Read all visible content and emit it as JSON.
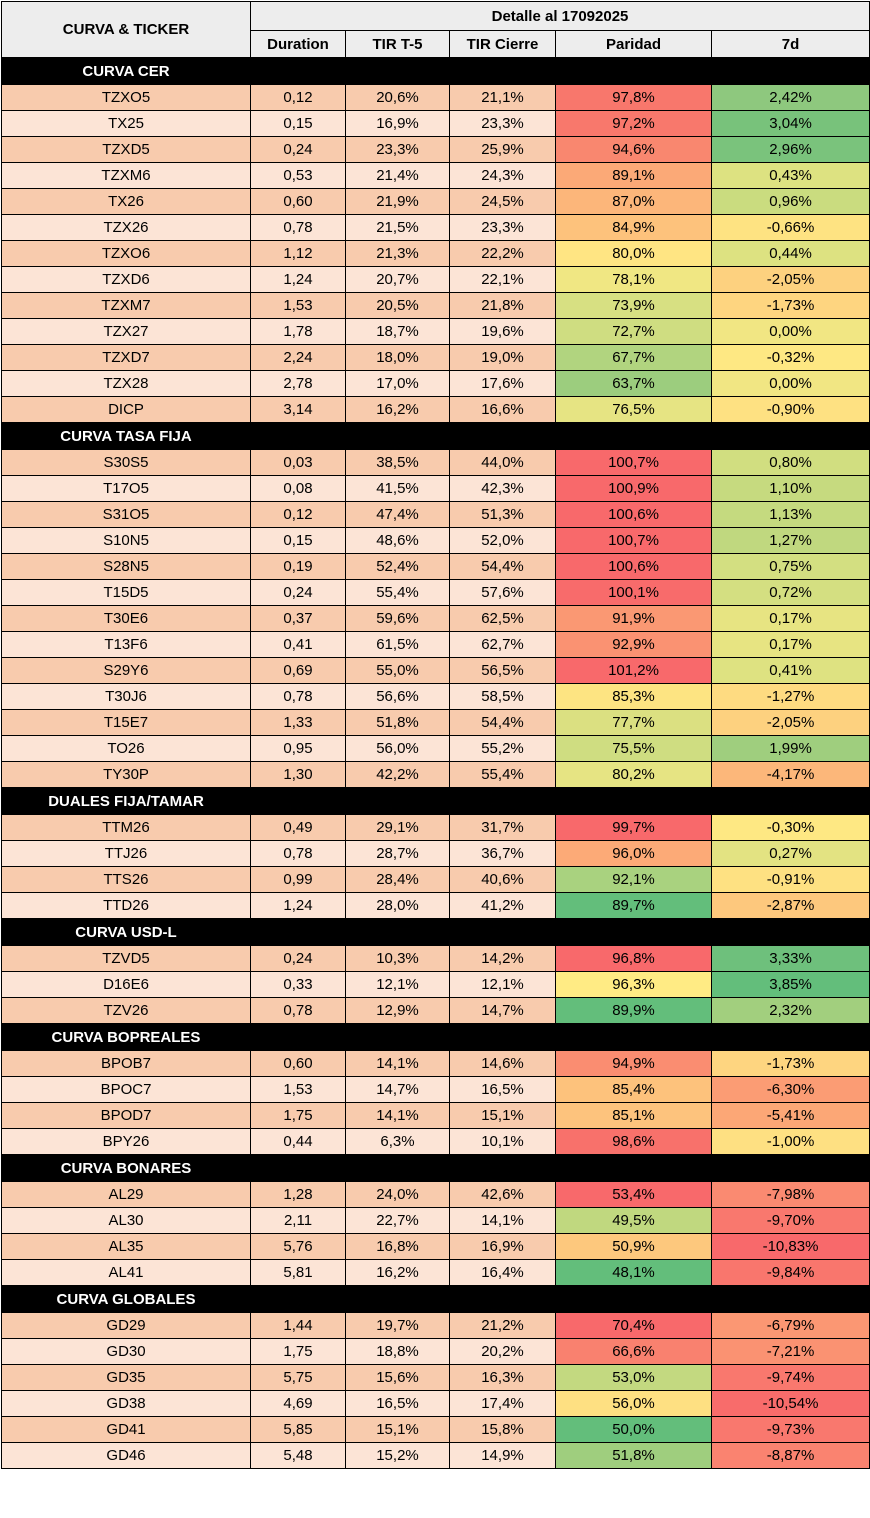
{
  "header": {
    "curve_ticker_label": "CURVA & TICKER",
    "detail_label": "Detalle al 17092025",
    "columns": [
      "Duration",
      "TIR T-5",
      "TIR Cierre",
      "Paridad",
      "7d"
    ]
  },
  "sections": [
    {
      "title": "CURVA CER",
      "rows": [
        {
          "ticker": "TZXO5",
          "duration": "0,12",
          "tir_t5": "20,6%",
          "tir_cierre": "21,1%",
          "paridad": "97,8%",
          "paridad_color": "#f8776c",
          "d7": "2,42%",
          "d7_color": "#8ec87e"
        },
        {
          "ticker": "TX25",
          "duration": "0,15",
          "tir_t5": "16,9%",
          "tir_cierre": "23,3%",
          "paridad": "97,2%",
          "paridad_color": "#f8786c",
          "d7": "3,04%",
          "d7_color": "#78c27b"
        },
        {
          "ticker": "TZXD5",
          "duration": "0,24",
          "tir_t5": "23,3%",
          "tir_cierre": "25,9%",
          "paridad": "94,6%",
          "paridad_color": "#f9876f",
          "d7": "2,96%",
          "d7_color": "#7ac37c"
        },
        {
          "ticker": "TZXM6",
          "duration": "0,53",
          "tir_t5": "21,4%",
          "tir_cierre": "24,3%",
          "paridad": "89,1%",
          "paridad_color": "#fba977",
          "d7": "0,43%",
          "d7_color": "#dde281"
        },
        {
          "ticker": "TX26",
          "duration": "0,60",
          "tir_t5": "21,9%",
          "tir_cierre": "24,5%",
          "paridad": "87,0%",
          "paridad_color": "#fcb67a",
          "d7": "0,96%",
          "d7_color": "#cadc7f"
        },
        {
          "ticker": "TZX26",
          "duration": "0,78",
          "tir_t5": "21,5%",
          "tir_cierre": "23,3%",
          "paridad": "84,9%",
          "paridad_color": "#fdc27c",
          "d7": "-0,66%",
          "d7_color": "#fee382"
        },
        {
          "ticker": "TZXO6",
          "duration": "1,12",
          "tir_t5": "21,3%",
          "tir_cierre": "22,2%",
          "paridad": "80,0%",
          "paridad_color": "#ffe583",
          "d7": "0,44%",
          "d7_color": "#dde281"
        },
        {
          "ticker": "TZXD6",
          "duration": "1,24",
          "tir_t5": "20,7%",
          "tir_cierre": "22,1%",
          "paridad": "78,1%",
          "paridad_color": "#f0e783",
          "d7": "-2,05%",
          "d7_color": "#fdd17f"
        },
        {
          "ticker": "TZXM7",
          "duration": "1,53",
          "tir_t5": "20,5%",
          "tir_cierre": "21,8%",
          "paridad": "73,9%",
          "paridad_color": "#d7e082",
          "d7": "-1,73%",
          "d7_color": "#fed580"
        },
        {
          "ticker": "TZX27",
          "duration": "1,78",
          "tir_t5": "18,7%",
          "tir_cierre": "19,6%",
          "paridad": "72,7%",
          "paridad_color": "#cfdd81",
          "d7": "0,00%",
          "d7_color": "#f1e683"
        },
        {
          "ticker": "TZXD7",
          "duration": "2,24",
          "tir_t5": "18,0%",
          "tir_cierre": "19,0%",
          "paridad": "67,7%",
          "paridad_color": "#b1d47f",
          "d7": "-0,32%",
          "d7_color": "#fee883"
        },
        {
          "ticker": "TZX28",
          "duration": "2,78",
          "tir_t5": "17,0%",
          "tir_cierre": "17,6%",
          "paridad": "63,7%",
          "paridad_color": "#9ccd7e",
          "d7": "0,00%",
          "d7_color": "#f1e683"
        },
        {
          "ticker": "DICP",
          "duration": "3,14",
          "tir_t5": "16,2%",
          "tir_cierre": "16,6%",
          "paridad": "76,5%",
          "paridad_color": "#e6e483",
          "d7": "-0,90%",
          "d7_color": "#fee182"
        }
      ]
    },
    {
      "title": "CURVA TASA FIJA",
      "rows": [
        {
          "ticker": "S30S5",
          "duration": "0,03",
          "tir_t5": "38,5%",
          "tir_cierre": "44,0%",
          "paridad": "100,7%",
          "paridad_color": "#f8696b",
          "d7": "0,80%",
          "d7_color": "#d1de80"
        },
        {
          "ticker": "T17O5",
          "duration": "0,08",
          "tir_t5": "41,5%",
          "tir_cierre": "42,3%",
          "paridad": "100,9%",
          "paridad_color": "#f8696b",
          "d7": "1,10%",
          "d7_color": "#c6da7f"
        },
        {
          "ticker": "S31O5",
          "duration": "0,12",
          "tir_t5": "47,4%",
          "tir_cierre": "51,3%",
          "paridad": "100,6%",
          "paridad_color": "#f8696b",
          "d7": "1,13%",
          "d7_color": "#c5da7f"
        },
        {
          "ticker": "S10N5",
          "duration": "0,15",
          "tir_t5": "48,6%",
          "tir_cierre": "52,0%",
          "paridad": "100,7%",
          "paridad_color": "#f8696b",
          "d7": "1,27%",
          "d7_color": "#c0d87f"
        },
        {
          "ticker": "S28N5",
          "duration": "0,19",
          "tir_t5": "52,4%",
          "tir_cierre": "54,4%",
          "paridad": "100,6%",
          "paridad_color": "#f8696b",
          "d7": "0,75%",
          "d7_color": "#d3df81"
        },
        {
          "ticker": "T15D5",
          "duration": "0,24",
          "tir_t5": "55,4%",
          "tir_cierre": "57,6%",
          "paridad": "100,1%",
          "paridad_color": "#f86b6b",
          "d7": "0,72%",
          "d7_color": "#d4df81"
        },
        {
          "ticker": "T30E6",
          "duration": "0,37",
          "tir_t5": "59,6%",
          "tir_cierre": "62,5%",
          "paridad": "91,9%",
          "paridad_color": "#fa9873",
          "d7": "0,17%",
          "d7_color": "#e7e482"
        },
        {
          "ticker": "T13F6",
          "duration": "0,41",
          "tir_t5": "61,5%",
          "tir_cierre": "62,7%",
          "paridad": "92,9%",
          "paridad_color": "#fa9272",
          "d7": "0,17%",
          "d7_color": "#e7e482"
        },
        {
          "ticker": "S29Y6",
          "duration": "0,69",
          "tir_t5": "55,0%",
          "tir_cierre": "56,5%",
          "paridad": "101,2%",
          "paridad_color": "#f8696b",
          "d7": "0,41%",
          "d7_color": "#dee281"
        },
        {
          "ticker": "T30J6",
          "duration": "0,78",
          "tir_t5": "56,6%",
          "tir_cierre": "58,5%",
          "paridad": "85,3%",
          "paridad_color": "#fde482",
          "d7": "-1,27%",
          "d7_color": "#fedb81"
        },
        {
          "ticker": "T15E7",
          "duration": "1,33",
          "tir_t5": "51,8%",
          "tir_cierre": "54,4%",
          "paridad": "77,7%",
          "paridad_color": "#dbe081",
          "d7": "-2,05%",
          "d7_color": "#fdd17f"
        },
        {
          "ticker": "TO26",
          "duration": "0,95",
          "tir_t5": "56,0%",
          "tir_cierre": "55,2%",
          "paridad": "75,5%",
          "paridad_color": "#cfdd81",
          "d7": "1,99%",
          "d7_color": "#9fce7e"
        },
        {
          "ticker": "TY30P",
          "duration": "1,30",
          "tir_t5": "42,2%",
          "tir_cierre": "55,4%",
          "paridad": "80,2%",
          "paridad_color": "#e6e483",
          "d7": "-4,17%",
          "d7_color": "#fcb77a"
        }
      ]
    },
    {
      "title": "DUALES FIJA/TAMAR",
      "rows": [
        {
          "ticker": "TTM26",
          "duration": "0,49",
          "tir_t5": "29,1%",
          "tir_cierre": "31,7%",
          "paridad": "99,7%",
          "paridad_color": "#f8696b",
          "d7": "-0,30%",
          "d7_color": "#fee883"
        },
        {
          "ticker": "TTJ26",
          "duration": "0,78",
          "tir_t5": "28,7%",
          "tir_cierre": "36,7%",
          "paridad": "96,0%",
          "paridad_color": "#fcaa77",
          "d7": "0,27%",
          "d7_color": "#e3e382"
        },
        {
          "ticker": "TTS26",
          "duration": "0,99",
          "tir_t5": "28,4%",
          "tir_cierre": "40,6%",
          "paridad": "92,1%",
          "paridad_color": "#a9d27f",
          "d7": "-0,91%",
          "d7_color": "#fee182"
        },
        {
          "ticker": "TTD26",
          "duration": "1,24",
          "tir_t5": "28,0%",
          "tir_cierre": "41,2%",
          "paridad": "89,7%",
          "paridad_color": "#63be7b",
          "d7": "-2,87%",
          "d7_color": "#fdc87d"
        }
      ]
    },
    {
      "title": "CURVA USD-L",
      "rows": [
        {
          "ticker": "TZVD5",
          "duration": "0,24",
          "tir_t5": "10,3%",
          "tir_cierre": "14,2%",
          "paridad": "96,8%",
          "paridad_color": "#f8696b",
          "d7": "3,33%",
          "d7_color": "#6ec07c"
        },
        {
          "ticker": "D16E6",
          "duration": "0,33",
          "tir_t5": "12,1%",
          "tir_cierre": "12,1%",
          "paridad": "96,3%",
          "paridad_color": "#ffeb84",
          "d7": "3,85%",
          "d7_color": "#63be7b"
        },
        {
          "ticker": "TZV26",
          "duration": "0,78",
          "tir_t5": "12,9%",
          "tir_cierre": "14,7%",
          "paridad": "89,9%",
          "paridad_color": "#63be7b",
          "d7": "2,32%",
          "d7_color": "#a2cf7e"
        }
      ]
    },
    {
      "title": "CURVA BOPREALES",
      "rows": [
        {
          "ticker": "BPOB7",
          "duration": "0,60",
          "tir_t5": "14,1%",
          "tir_cierre": "14,6%",
          "paridad": "94,9%",
          "paridad_color": "#fa8d71",
          "d7": "-1,73%",
          "d7_color": "#fed580"
        },
        {
          "ticker": "BPOC7",
          "duration": "1,53",
          "tir_t5": "14,7%",
          "tir_cierre": "16,5%",
          "paridad": "85,4%",
          "paridad_color": "#fdc27c",
          "d7": "-6,30%",
          "d7_color": "#fb9c74"
        },
        {
          "ticker": "BPOD7",
          "duration": "1,75",
          "tir_t5": "14,1%",
          "tir_cierre": "15,1%",
          "paridad": "85,1%",
          "paridad_color": "#fdc37d",
          "d7": "-5,41%",
          "d7_color": "#fca776"
        },
        {
          "ticker": "BPY26",
          "duration": "0,44",
          "tir_t5": "6,3%",
          "tir_cierre": "10,1%",
          "paridad": "98,6%",
          "paridad_color": "#f8716b",
          "d7": "-1,00%",
          "d7_color": "#fee082"
        }
      ]
    },
    {
      "title": "CURVA BONARES",
      "rows": [
        {
          "ticker": "AL29",
          "duration": "1,28",
          "tir_t5": "24,0%",
          "tir_cierre": "42,6%",
          "paridad": "53,4%",
          "paridad_color": "#f8696b",
          "d7": "-7,98%",
          "d7_color": "#fa8a71"
        },
        {
          "ticker": "AL30",
          "duration": "2,11",
          "tir_t5": "22,7%",
          "tir_cierre": "14,1%",
          "paridad": "49,5%",
          "paridad_color": "#c0d87f",
          "d7": "-9,70%",
          "d7_color": "#f9786e"
        },
        {
          "ticker": "AL35",
          "duration": "5,76",
          "tir_t5": "16,8%",
          "tir_cierre": "16,9%",
          "paridad": "50,9%",
          "paridad_color": "#fdc87d",
          "d7": "-10,83%",
          "d7_color": "#f8696b"
        },
        {
          "ticker": "AL41",
          "duration": "5,81",
          "tir_t5": "16,2%",
          "tir_cierre": "16,4%",
          "paridad": "48,1%",
          "paridad_color": "#63be7b",
          "d7": "-9,84%",
          "d7_color": "#f9766d"
        }
      ]
    },
    {
      "title": "CURVA GLOBALES",
      "rows": [
        {
          "ticker": "GD29",
          "duration": "1,44",
          "tir_t5": "19,7%",
          "tir_cierre": "21,2%",
          "paridad": "70,4%",
          "paridad_color": "#f8696b",
          "d7": "-6,79%",
          "d7_color": "#fb9773"
        },
        {
          "ticker": "GD30",
          "duration": "1,75",
          "tir_t5": "18,8%",
          "tir_cierre": "20,2%",
          "paridad": "66,6%",
          "paridad_color": "#f9816f",
          "d7": "-7,21%",
          "d7_color": "#fa9272"
        },
        {
          "ticker": "GD35",
          "duration": "5,75",
          "tir_t5": "15,6%",
          "tir_cierre": "16,3%",
          "paridad": "53,0%",
          "paridad_color": "#c3d980",
          "d7": "-9,74%",
          "d7_color": "#f9786e"
        },
        {
          "ticker": "GD38",
          "duration": "4,69",
          "tir_t5": "16,5%",
          "tir_cierre": "17,4%",
          "paridad": "56,0%",
          "paridad_color": "#fee082",
          "d7": "-10,54%",
          "d7_color": "#f86c6b"
        },
        {
          "ticker": "GD41",
          "duration": "5,85",
          "tir_t5": "15,1%",
          "tir_cierre": "15,8%",
          "paridad": "50,0%",
          "paridad_color": "#63be7b",
          "d7": "-9,73%",
          "d7_color": "#f9786e"
        },
        {
          "ticker": "GD46",
          "duration": "5,48",
          "tir_t5": "15,2%",
          "tir_cierre": "14,9%",
          "paridad": "51,8%",
          "paridad_color": "#9fce7e",
          "d7": "-8,87%",
          "d7_color": "#fa8370"
        }
      ]
    }
  ]
}
